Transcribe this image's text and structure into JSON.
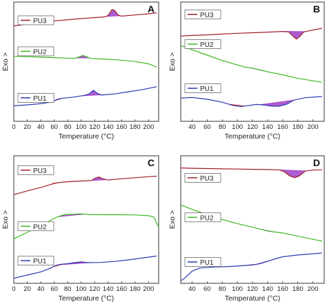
{
  "chart_data": [
    {
      "type": "line",
      "panel_label": "A",
      "xlabel": "Temperature (°C)",
      "ylabel": "Exo >",
      "xlim": [
        0,
        215
      ],
      "xticks": [
        0,
        20,
        40,
        60,
        80,
        100,
        120,
        140,
        160,
        180,
        200
      ],
      "legend_position": "left",
      "series": [
        {
          "name": "PU3",
          "color": "#a01c28",
          "points": [
            [
              0,
              200
            ],
            [
              20,
              185
            ],
            [
              40,
              170
            ],
            [
              60,
              158
            ],
            [
              80,
              148
            ],
            [
              100,
              139
            ],
            [
              120,
              130
            ],
            [
              135,
              124
            ],
            [
              140,
              112
            ],
            [
              146,
              62
            ],
            [
              150,
              72
            ],
            [
              155,
              110
            ],
            [
              160,
              118
            ],
            [
              180,
              108
            ],
            [
              200,
              98
            ],
            [
              212,
              90
            ]
          ],
          "highlight": {
            "color": "#a040c8",
            "from": 136,
            "to": 158
          }
        },
        {
          "name": "PU2",
          "color": "#3ab820",
          "points": [
            [
              0,
              455
            ],
            [
              20,
              458
            ],
            [
              40,
              462
            ],
            [
              60,
              466
            ],
            [
              80,
              470
            ],
            [
              90,
              472
            ],
            [
              96,
              462
            ],
            [
              102,
              448
            ],
            [
              108,
              458
            ],
            [
              114,
              473
            ],
            [
              140,
              480
            ],
            [
              160,
              487
            ],
            [
              180,
              498
            ],
            [
              200,
              518
            ],
            [
              212,
              545
            ]
          ],
          "highlight": {
            "color": "#a040c8",
            "from": 92,
            "to": 112
          }
        },
        {
          "name": "PU1",
          "color": "#2838b0",
          "points": [
            [
              0,
              870
            ],
            [
              20,
              862
            ],
            [
              40,
              852
            ],
            [
              55,
              838
            ],
            [
              60,
              828
            ],
            [
              65,
              815
            ],
            [
              70,
              808
            ],
            [
              90,
              796
            ],
            [
              105,
              782
            ],
            [
              112,
              770
            ],
            [
              118,
              740
            ],
            [
              124,
              765
            ],
            [
              130,
              780
            ],
            [
              150,
              770
            ],
            [
              170,
              752
            ],
            [
              190,
              735
            ],
            [
              212,
              710
            ]
          ],
          "highlight": {
            "color": "#a040c8",
            "from": 100,
            "to": 138
          },
          "highlight2": {
            "color": "#e03030",
            "from": 56,
            "to": 72
          }
        }
      ]
    },
    {
      "type": "line",
      "panel_label": "B",
      "xlabel": "Temperature (°C)",
      "ylabel": "Exo >",
      "xlim": [
        25,
        215
      ],
      "xticks": [
        40,
        60,
        80,
        100,
        120,
        140,
        160,
        180,
        200
      ],
      "legend_position": "left",
      "series": [
        {
          "name": "PU3",
          "color": "#a01c28",
          "points": [
            [
              25,
              285
            ],
            [
              40,
              280
            ],
            [
              60,
              275
            ],
            [
              80,
              268
            ],
            [
              100,
              262
            ],
            [
              120,
              257
            ],
            [
              140,
              252
            ],
            [
              160,
              246
            ],
            [
              168,
              250
            ],
            [
              174,
              288
            ],
            [
              178,
              310
            ],
            [
              182,
              292
            ],
            [
              188,
              250
            ],
            [
              200,
              234
            ],
            [
              212,
              220
            ]
          ],
          "highlight": {
            "color": "#a040c8",
            "from": 160,
            "to": 190
          }
        },
        {
          "name": "PU2",
          "color": "#3ab820",
          "points": [
            [
              25,
              365
            ],
            [
              40,
              400
            ],
            [
              60,
              445
            ],
            [
              80,
              490
            ],
            [
              100,
              528
            ],
            [
              110,
              545
            ],
            [
              120,
              555
            ],
            [
              130,
              568
            ],
            [
              140,
              585
            ],
            [
              160,
              610
            ],
            [
              180,
              640
            ],
            [
              200,
              660
            ],
            [
              212,
              672
            ]
          ],
          "highlight": {
            "color": "#a040c8",
            "from": 115,
            "to": 145
          },
          "highlight2": {
            "color": "#909090",
            "from": 135,
            "to": 148
          }
        },
        {
          "name": "PU1",
          "color": "#2838b0",
          "points": [
            [
              25,
              805
            ],
            [
              40,
              800
            ],
            [
              60,
              815
            ],
            [
              80,
              840
            ],
            [
              95,
              868
            ],
            [
              105,
              876
            ],
            [
              115,
              868
            ],
            [
              125,
              858
            ],
            [
              135,
              863
            ],
            [
              145,
              872
            ],
            [
              155,
              874
            ],
            [
              165,
              858
            ],
            [
              175,
              822
            ],
            [
              190,
              802
            ],
            [
              212,
              792
            ]
          ],
          "highlight": {
            "color": "#a040c8",
            "from": 130,
            "to": 175
          },
          "highlight2": {
            "color": "#e03030",
            "from": 88,
            "to": 110
          }
        }
      ]
    },
    {
      "type": "line",
      "panel_label": "C",
      "xlabel": "Temperature (°C)",
      "ylabel": "Exo >",
      "xlim": [
        0,
        215
      ],
      "xticks": [
        0,
        20,
        40,
        60,
        80,
        100,
        120,
        140,
        160,
        180,
        200
      ],
      "legend_position": "left",
      "series": [
        {
          "name": "PU3",
          "color": "#a01c28",
          "points": [
            [
              0,
              305
            ],
            [
              20,
              275
            ],
            [
              40,
              248
            ],
            [
              55,
              225
            ],
            [
              60,
              215
            ],
            [
              75,
              205
            ],
            [
              100,
              198
            ],
            [
              115,
              194
            ],
            [
              120,
              178
            ],
            [
              126,
              166
            ],
            [
              132,
              180
            ],
            [
              140,
              190
            ],
            [
              160,
              180
            ],
            [
              180,
              172
            ],
            [
              200,
              164
            ],
            [
              212,
              160
            ]
          ],
          "highlight": {
            "color": "#a040c8",
            "from": 112,
            "to": 138
          },
          "highlight2": {
            "color": "#e03030",
            "from": 55,
            "to": 68
          }
        },
        {
          "name": "PU2",
          "color": "#3ab820",
          "points": [
            [
              0,
              650
            ],
            [
              20,
              600
            ],
            [
              40,
              548
            ],
            [
              55,
              505
            ],
            [
              65,
              478
            ],
            [
              75,
              462
            ],
            [
              90,
              458
            ],
            [
              100,
              455
            ],
            [
              110,
              460
            ],
            [
              130,
              462
            ],
            [
              160,
              462
            ],
            [
              180,
              464
            ],
            [
              200,
              470
            ],
            [
              208,
              480
            ],
            [
              212,
              530
            ],
            [
              215,
              560
            ]
          ],
          "highlight": {
            "color": "#a040c8",
            "from": 65,
            "to": 105
          },
          "highlight2": {
            "color": "#909090",
            "from": 85,
            "to": 105
          }
        },
        {
          "name": "PU1",
          "color": "#2838b0",
          "points": [
            [
              0,
              960
            ],
            [
              20,
              935
            ],
            [
              40,
              910
            ],
            [
              55,
              880
            ],
            [
              62,
              860
            ],
            [
              70,
              850
            ],
            [
              80,
              846
            ],
            [
              90,
              838
            ],
            [
              100,
              832
            ],
            [
              110,
              838
            ],
            [
              130,
              836
            ],
            [
              150,
              828
            ],
            [
              170,
              816
            ],
            [
              190,
              802
            ],
            [
              212,
              786
            ]
          ],
          "highlight": {
            "color": "#a040c8",
            "from": 65,
            "to": 115
          },
          "highlight2": {
            "color": "#e03030",
            "from": 58,
            "to": 74
          }
        }
      ]
    },
    {
      "type": "line",
      "panel_label": "D",
      "xlabel": "Temperature (°C)",
      "ylabel": "Exo >",
      "xlim": [
        25,
        215
      ],
      "xticks": [
        40,
        60,
        80,
        100,
        120,
        140,
        160,
        180,
        200
      ],
      "legend_position": "left",
      "series": [
        {
          "name": "PU3",
          "color": "#a01c28",
          "points": [
            [
              25,
              95
            ],
            [
              40,
              98
            ],
            [
              60,
              100
            ],
            [
              80,
              102
            ],
            [
              100,
              104
            ],
            [
              120,
              106
            ],
            [
              140,
              108
            ],
            [
              155,
              110
            ],
            [
              162,
              125
            ],
            [
              170,
              160
            ],
            [
              176,
              172
            ],
            [
              182,
              158
            ],
            [
              190,
              120
            ],
            [
              200,
              112
            ],
            [
              212,
              110
            ]
          ],
          "highlight": {
            "color": "#a040c8",
            "from": 155,
            "to": 192
          }
        },
        {
          "name": "PU2",
          "color": "#3ab820",
          "points": [
            [
              25,
              385
            ],
            [
              40,
              420
            ],
            [
              60,
              462
            ],
            [
              80,
              500
            ],
            [
              100,
              532
            ],
            [
              120,
              560
            ],
            [
              130,
              575
            ],
            [
              140,
              590
            ],
            [
              150,
              598
            ],
            [
              160,
              605
            ],
            [
              180,
              630
            ],
            [
              200,
              655
            ],
            [
              212,
              668
            ]
          ],
          "highlight": {
            "color": "#a040c8",
            "from": 130,
            "to": 150
          },
          "highlight2": {
            "color": "#909090",
            "from": 140,
            "to": 152
          }
        },
        {
          "name": "PU1",
          "color": "#2838b0",
          "points": [
            [
              25,
              980
            ],
            [
              30,
              960
            ],
            [
              40,
              905
            ],
            [
              50,
              880
            ],
            [
              70,
              872
            ],
            [
              90,
              868
            ],
            [
              105,
              862
            ],
            [
              120,
              856
            ],
            [
              130,
              846
            ],
            [
              140,
              828
            ],
            [
              150,
              808
            ],
            [
              160,
              792
            ],
            [
              180,
              778
            ],
            [
              200,
              768
            ],
            [
              212,
              762
            ]
          ],
          "highlight": {
            "color": "#a040c8",
            "from": 125,
            "to": 155
          },
          "highlight2": {
            "color": "#e03030",
            "from": 105,
            "to": 128
          }
        }
      ]
    }
  ]
}
